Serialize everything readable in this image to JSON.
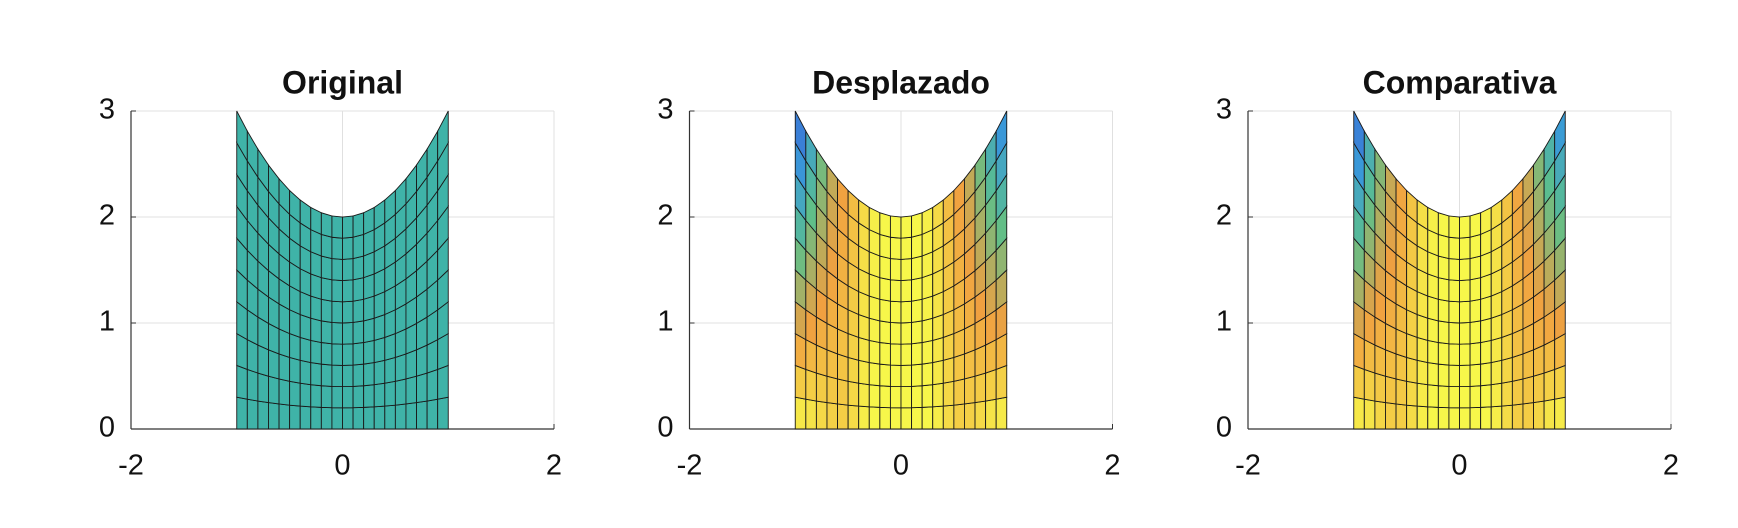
{
  "chart_data": [
    {
      "type": "surface",
      "title": "Original",
      "xlim": [
        -2,
        2
      ],
      "ylim": [
        0,
        3
      ],
      "xticks": [
        -2,
        0,
        2
      ],
      "yticks": [
        0,
        1,
        2,
        3
      ],
      "grid": true,
      "x": [
        -1,
        -0.9,
        -0.8,
        -0.7,
        -0.6,
        -0.5,
        -0.4,
        -0.3,
        -0.2,
        -0.1,
        0,
        0.1,
        0.2,
        0.3,
        0.4,
        0.5,
        0.6,
        0.7,
        0.8,
        0.9,
        1
      ],
      "y_top": [
        3,
        2.81,
        2.64,
        2.49,
        2.36,
        2.25,
        2.16,
        2.09,
        2.04,
        2.01,
        2,
        2.01,
        2.04,
        2.09,
        2.16,
        2.25,
        2.36,
        2.49,
        2.64,
        2.81,
        3
      ],
      "levels": [
        0,
        0.1,
        0.2,
        0.3,
        0.4,
        0.5,
        0.6,
        0.7,
        0.8,
        0.9,
        1
      ],
      "color": "#3fb3a8"
    },
    {
      "type": "surface",
      "title": "Desplazado",
      "xlim": [
        -2,
        2
      ],
      "ylim": [
        0,
        3
      ],
      "xticks": [
        -2,
        0,
        2
      ],
      "yticks": [
        0,
        1,
        2,
        3
      ],
      "grid": true,
      "x": [
        -1,
        -0.9,
        -0.8,
        -0.7,
        -0.6,
        -0.5,
        -0.4,
        -0.3,
        -0.2,
        -0.1,
        0,
        0.1,
        0.2,
        0.3,
        0.4,
        0.5,
        0.6,
        0.7,
        0.8,
        0.9,
        1
      ],
      "y_top": [
        3,
        2.81,
        2.64,
        2.49,
        2.36,
        2.25,
        2.16,
        2.09,
        2.04,
        2.01,
        2,
        2.01,
        2.04,
        2.09,
        2.16,
        2.25,
        2.36,
        2.49,
        2.64,
        2.81,
        3
      ],
      "levels": [
        0,
        0.1,
        0.2,
        0.3,
        0.4,
        0.5,
        0.6,
        0.7,
        0.8,
        0.9,
        1
      ],
      "values_top": [
        0.05,
        0.25,
        0.45,
        0.6,
        0.72,
        0.78,
        0.88,
        0.95,
        1,
        1,
        1,
        1,
        1,
        0.95,
        0.88,
        0.78,
        0.72,
        0.6,
        0.45,
        0.3,
        0.2
      ],
      "values_bottom": [
        1,
        1,
        0.95,
        0.92,
        0.88,
        0.9,
        0.95,
        1,
        1,
        1,
        1,
        1,
        1,
        1,
        0.95,
        0.9,
        0.88,
        0.92,
        0.95,
        1,
        1
      ]
    },
    {
      "type": "surface",
      "title": "Comparativa",
      "xlim": [
        -2,
        2
      ],
      "ylim": [
        0,
        3
      ],
      "xticks": [
        -2,
        0,
        2
      ],
      "yticks": [
        0,
        1,
        2,
        3
      ],
      "grid": true,
      "x": [
        -1,
        -0.9,
        -0.8,
        -0.7,
        -0.6,
        -0.5,
        -0.4,
        -0.3,
        -0.2,
        -0.1,
        0,
        0.1,
        0.2,
        0.3,
        0.4,
        0.5,
        0.6,
        0.7,
        0.8,
        0.9,
        1
      ],
      "y_top": [
        3,
        2.81,
        2.64,
        2.49,
        2.36,
        2.25,
        2.16,
        2.09,
        2.04,
        2.01,
        2,
        2.01,
        2.04,
        2.09,
        2.16,
        2.25,
        2.36,
        2.49,
        2.64,
        2.81,
        3
      ],
      "levels": [
        0,
        0.1,
        0.2,
        0.3,
        0.4,
        0.5,
        0.6,
        0.7,
        0.8,
        0.9,
        1
      ],
      "values_top": [
        0.05,
        0.28,
        0.48,
        0.62,
        0.72,
        0.8,
        0.9,
        0.96,
        1,
        1,
        1,
        1,
        1,
        0.96,
        0.9,
        0.8,
        0.72,
        0.62,
        0.48,
        0.32,
        0.22
      ],
      "values_bottom": [
        1,
        1,
        0.95,
        0.9,
        0.88,
        0.9,
        0.95,
        1,
        1,
        1,
        1,
        1,
        1,
        1,
        0.95,
        0.9,
        0.88,
        0.9,
        0.95,
        1,
        1
      ]
    }
  ]
}
